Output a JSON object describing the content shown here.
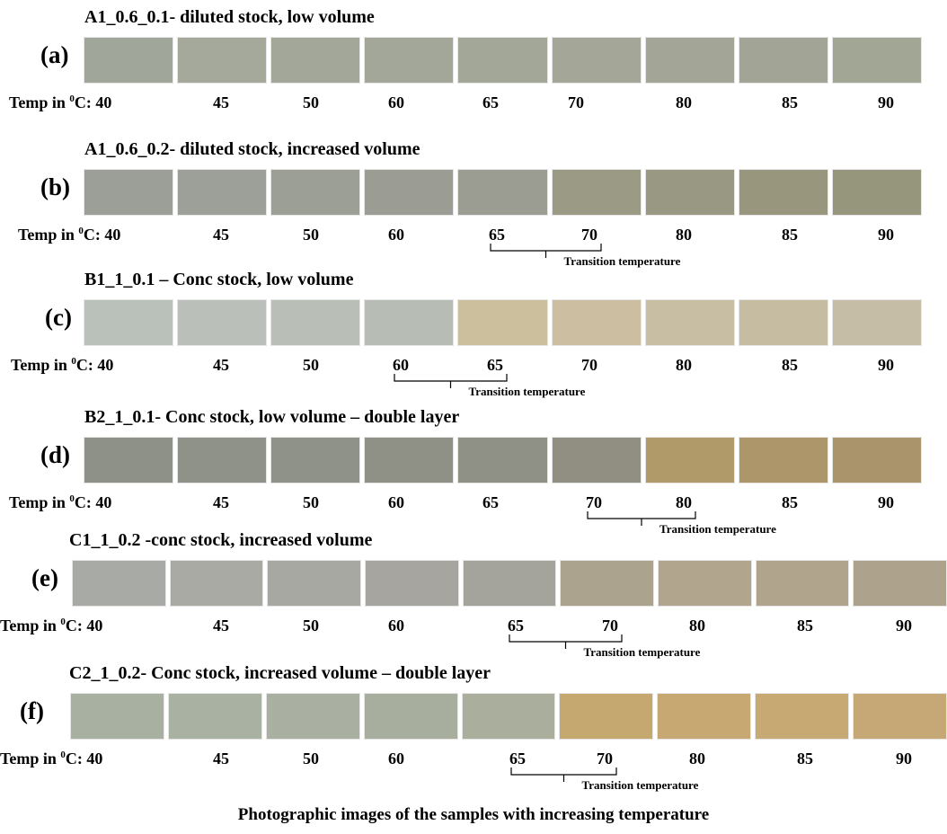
{
  "figure_caption": "Photographic images of the samples with increasing temperature",
  "transition_label": "Transition temperature",
  "temp_prefix": "Temp in ",
  "temp_unit_sup": "0",
  "temp_unit_after": "C:",
  "rows": [
    {
      "label": "(a)",
      "title": "A1_0.6_0.1- diluted stock, low volume",
      "temps": [
        "40",
        "45",
        "50",
        "60",
        "65",
        "70",
        "80",
        "85",
        "90"
      ],
      "colors": [
        "#a0a69a",
        "#a4a99d",
        "#a2a79b",
        "#a3a79a",
        "#a3a799",
        "#a4a798",
        "#a3a697",
        "#a2a596",
        "#a2a695"
      ],
      "transition": null
    },
    {
      "label": "(b)",
      "title": "A1_0.6_0.2- diluted stock, increased volume",
      "temps": [
        "40",
        "45",
        "50",
        "60",
        "65",
        "70",
        "80",
        "85",
        "90"
      ],
      "colors": [
        "#9c9f98",
        "#9da098",
        "#9c9f96",
        "#9b9d94",
        "#9b9c92",
        "#9a9a86",
        "#999883",
        "#98977f",
        "#96967e"
      ],
      "transition": {
        "from": 4,
        "to": 5
      }
    },
    {
      "label": "(c)",
      "title": "B1_1_0.1 – Conc stock, low volume",
      "temps": [
        "40",
        "45",
        "50",
        "60",
        "65",
        "70",
        "80",
        "85",
        "90"
      ],
      "colors": [
        "#b9c1ba",
        "#bac0b9",
        "#b9bfb7",
        "#b7bdb5",
        "#cbbfa0",
        "#cbbfa2",
        "#c7bea5",
        "#c6bca3",
        "#c5bda6"
      ],
      "transition": {
        "from": 3,
        "to": 4
      }
    },
    {
      "label": "(d)",
      "title": "B2_1_0.1- Conc stock, low volume – double layer",
      "temps": [
        "40",
        "45",
        "50",
        "60",
        "65",
        "70",
        "80",
        "85",
        "90"
      ],
      "colors": [
        "#8e9188",
        "#8f9289",
        "#8f9288",
        "#8f9187",
        "#8f9186",
        "#918f82",
        "#b09a6c",
        "#ab966c",
        "#a8946d"
      ],
      "transition": {
        "from": 5,
        "to": 6
      }
    },
    {
      "label": "(e)",
      "title": "C1_1_0.2 -conc stock, increased volume",
      "temps": [
        "40",
        "45",
        "50",
        "60",
        "65",
        "70",
        "80",
        "85",
        "90"
      ],
      "colors": [
        "#a8aaa5",
        "#a9aaa4",
        "#a8a8a2",
        "#a6a5a0",
        "#a4a39c",
        "#aca390",
        "#b1a58e",
        "#afa48e",
        "#ada38d"
      ],
      "transition": {
        "from": 4,
        "to": 5
      }
    },
    {
      "label": "(f)",
      "title": "C2_1_0.2- Conc stock, increased volume – double layer",
      "temps": [
        "40",
        "45",
        "50",
        "60",
        "65",
        "70",
        "80",
        "85",
        "90"
      ],
      "colors": [
        "#a8b0a3",
        "#a9b1a4",
        "#a9b0a3",
        "#a8ae9f",
        "#aaae9d",
        "#c4a873",
        "#c7a875",
        "#c6a977",
        "#c4a878"
      ],
      "transition": {
        "from": 4,
        "to": 5
      }
    }
  ]
}
